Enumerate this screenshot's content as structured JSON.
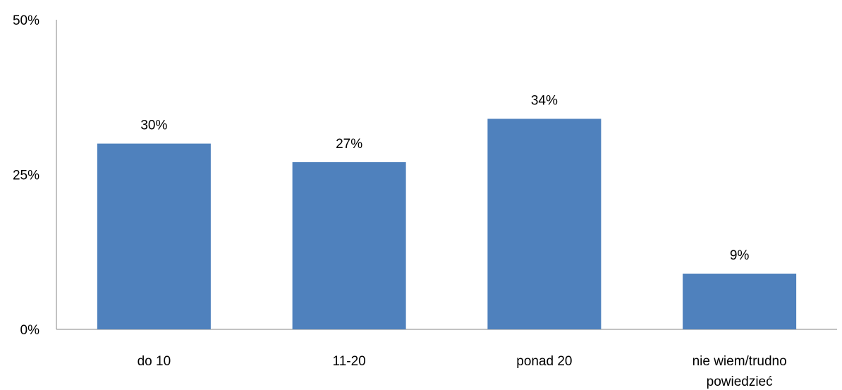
{
  "chart_data": {
    "type": "bar",
    "title": "",
    "xlabel": "",
    "ylabel": "",
    "categories": [
      [
        "do 10"
      ],
      [
        "11-20"
      ],
      [
        "ponad 20"
      ],
      [
        "nie wiem/trudno",
        "powiedzieć"
      ]
    ],
    "values": [
      30,
      27,
      34,
      9
    ],
    "data_labels": [
      "30%",
      "27%",
      "34%",
      "9%"
    ],
    "ylim": [
      0,
      50
    ],
    "yticks": [
      0,
      25,
      50
    ],
    "ytick_labels": [
      "0%",
      "25%",
      "50%"
    ],
    "grid": false,
    "legend": "none",
    "colors": {
      "bar": "#4F81BD",
      "axis": "#868686"
    }
  }
}
